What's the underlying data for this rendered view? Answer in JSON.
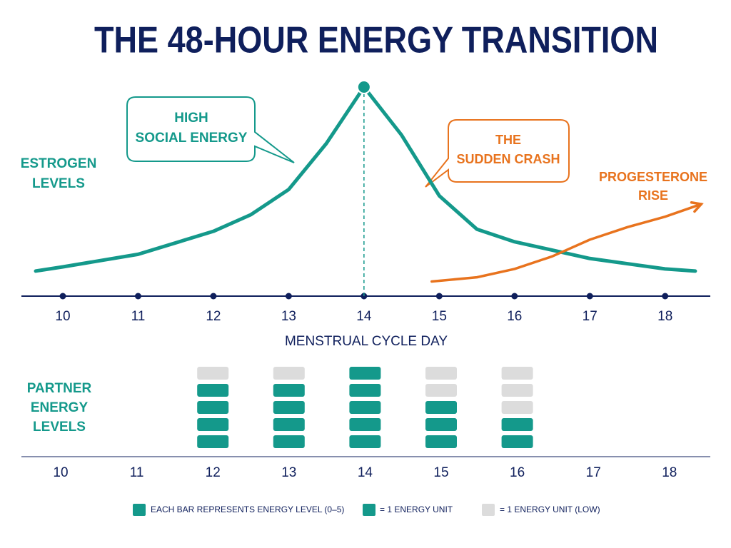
{
  "chart_data": [
    {
      "type": "line",
      "title": "THE 48-HOUR ENERGY TRANSITION",
      "xlabel": "MENSTRUAL CYCLE DAY",
      "xlim": [
        9.45,
        18.6
      ],
      "ylim": [
        0,
        100
      ],
      "xticks": [
        10,
        11,
        12,
        13,
        14,
        15,
        16,
        17,
        18
      ],
      "series": [
        {
          "label": [
            "ESTROGEN",
            "LEVELS"
          ],
          "color": "#14998b",
          "x": [
            9.64,
            10,
            11,
            12,
            12.5,
            13,
            13.5,
            14,
            14.5,
            15,
            15.5,
            16,
            17,
            18,
            18.4
          ],
          "values": [
            12,
            14,
            20,
            31,
            39,
            51,
            73,
            100,
            77,
            48,
            32,
            26,
            18,
            13,
            12
          ]
        },
        {
          "label": [
            "PROGESTERONE",
            "RISE"
          ],
          "color": "#e8731e",
          "x": [
            14.9,
            15.5,
            16,
            16.5,
            17,
            17.5,
            18,
            18.48
          ],
          "values": [
            7,
            9,
            13,
            19,
            27,
            33,
            38,
            44
          ]
        }
      ],
      "annotations": [
        {
          "text": [
            "HIGH",
            "SOCIAL ENERGY"
          ]
        },
        {
          "text": [
            "THE",
            "SUDDEN CRASH"
          ]
        }
      ]
    },
    {
      "type": "unit_bar",
      "label": [
        "PARTNER",
        "ENERGY",
        "LEVELS"
      ],
      "categories": [
        "10",
        "11",
        "12",
        "13",
        "14",
        "15",
        "16",
        "17",
        "18"
      ],
      "values": [
        null,
        null,
        4,
        4,
        5,
        3,
        2,
        null,
        null
      ],
      "ylim": [
        0,
        5
      ],
      "color": "#14998b",
      "low_color": "#dcdcdc",
      "legend": [
        "EACH BAR REPRESENTS ENERGY LEVEL (0–5)",
        "= 1 ENERGY UNIT",
        "= 1 ENERGY UNIT (LOW)"
      ]
    }
  ]
}
